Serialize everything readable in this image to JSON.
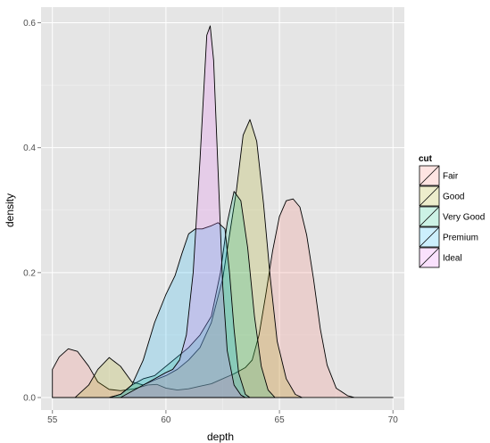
{
  "chart_data": {
    "type": "area",
    "title": "",
    "xlabel": "depth",
    "ylabel": "density",
    "xlim": [
      54.5,
      70.5
    ],
    "ylim": [
      -0.02,
      0.625
    ],
    "x_ticks": [
      55,
      60,
      65,
      70
    ],
    "x_tick_labels": [
      "55",
      "60",
      "65",
      "70"
    ],
    "y_ticks": [
      0.0,
      0.2,
      0.4,
      0.6
    ],
    "y_tick_labels": [
      "0.0",
      "0.2",
      "0.4",
      "0.6"
    ],
    "grid": true,
    "legend": {
      "title": "cut",
      "position": "right"
    },
    "series": [
      {
        "name": "Fair",
        "color": "#F8766D",
        "points": [
          [
            55.0,
            0.045
          ],
          [
            55.3,
            0.065
          ],
          [
            55.7,
            0.078
          ],
          [
            56.1,
            0.074
          ],
          [
            56.6,
            0.05
          ],
          [
            57.0,
            0.025
          ],
          [
            57.5,
            0.013
          ],
          [
            58.0,
            0.011
          ],
          [
            58.6,
            0.014
          ],
          [
            59.2,
            0.02
          ],
          [
            59.6,
            0.021
          ],
          [
            60.0,
            0.015
          ],
          [
            60.5,
            0.012
          ],
          [
            61.0,
            0.014
          ],
          [
            61.5,
            0.018
          ],
          [
            62.0,
            0.022
          ],
          [
            62.5,
            0.03
          ],
          [
            63.0,
            0.038
          ],
          [
            63.5,
            0.048
          ],
          [
            63.8,
            0.06
          ],
          [
            64.1,
            0.1
          ],
          [
            64.4,
            0.165
          ],
          [
            64.7,
            0.235
          ],
          [
            65.0,
            0.29
          ],
          [
            65.3,
            0.315
          ],
          [
            65.6,
            0.318
          ],
          [
            65.9,
            0.305
          ],
          [
            66.2,
            0.26
          ],
          [
            66.5,
            0.19
          ],
          [
            66.8,
            0.11
          ],
          [
            67.1,
            0.052
          ],
          [
            67.5,
            0.015
          ],
          [
            68.0,
            0.003
          ],
          [
            68.3,
            0.0
          ],
          [
            70.0,
            0.0
          ]
        ]
      },
      {
        "name": "Good",
        "color": "#A3A500",
        "points": [
          [
            55.0,
            0.0
          ],
          [
            56.0,
            0.0
          ],
          [
            56.6,
            0.02
          ],
          [
            57.0,
            0.045
          ],
          [
            57.5,
            0.064
          ],
          [
            58.0,
            0.05
          ],
          [
            58.5,
            0.025
          ],
          [
            59.0,
            0.02
          ],
          [
            59.5,
            0.028
          ],
          [
            60.0,
            0.035
          ],
          [
            60.5,
            0.045
          ],
          [
            61.0,
            0.06
          ],
          [
            61.5,
            0.08
          ],
          [
            62.0,
            0.12
          ],
          [
            62.5,
            0.19
          ],
          [
            62.8,
            0.26
          ],
          [
            63.1,
            0.33
          ],
          [
            63.4,
            0.42
          ],
          [
            63.7,
            0.445
          ],
          [
            64.0,
            0.41
          ],
          [
            64.3,
            0.31
          ],
          [
            64.6,
            0.19
          ],
          [
            64.9,
            0.09
          ],
          [
            65.3,
            0.03
          ],
          [
            65.7,
            0.005
          ],
          [
            66.0,
            0.0
          ]
        ]
      },
      {
        "name": "Very Good",
        "color": "#00BF7D",
        "points": [
          [
            57.5,
            0.0
          ],
          [
            58.0,
            0.005
          ],
          [
            58.5,
            0.02
          ],
          [
            59.0,
            0.03
          ],
          [
            59.5,
            0.035
          ],
          [
            60.0,
            0.05
          ],
          [
            60.5,
            0.065
          ],
          [
            61.0,
            0.08
          ],
          [
            61.5,
            0.1
          ],
          [
            62.0,
            0.13
          ],
          [
            62.4,
            0.2
          ],
          [
            62.7,
            0.28
          ],
          [
            63.0,
            0.33
          ],
          [
            63.3,
            0.315
          ],
          [
            63.6,
            0.24
          ],
          [
            63.9,
            0.13
          ],
          [
            64.2,
            0.05
          ],
          [
            64.5,
            0.012
          ],
          [
            64.8,
            0.0
          ]
        ]
      },
      {
        "name": "Premium",
        "color": "#00B0F6",
        "points": [
          [
            57.5,
            0.0
          ],
          [
            58.0,
            0.005
          ],
          [
            58.5,
            0.02
          ],
          [
            59.0,
            0.06
          ],
          [
            59.5,
            0.12
          ],
          [
            60.0,
            0.165
          ],
          [
            60.4,
            0.195
          ],
          [
            60.7,
            0.23
          ],
          [
            61.0,
            0.262
          ],
          [
            61.3,
            0.27
          ],
          [
            61.6,
            0.27
          ],
          [
            62.0,
            0.275
          ],
          [
            62.3,
            0.28
          ],
          [
            62.6,
            0.27
          ],
          [
            62.8,
            0.2
          ],
          [
            63.0,
            0.11
          ],
          [
            63.2,
            0.04
          ],
          [
            63.5,
            0.005
          ],
          [
            63.7,
            0.0
          ]
        ]
      },
      {
        "name": "Ideal",
        "color": "#E76BF3",
        "points": [
          [
            58.0,
            0.0
          ],
          [
            58.5,
            0.01
          ],
          [
            59.0,
            0.02
          ],
          [
            59.5,
            0.03
          ],
          [
            60.0,
            0.04
          ],
          [
            60.3,
            0.045
          ],
          [
            60.6,
            0.06
          ],
          [
            60.9,
            0.1
          ],
          [
            61.2,
            0.2
          ],
          [
            61.5,
            0.38
          ],
          [
            61.8,
            0.58
          ],
          [
            61.95,
            0.595
          ],
          [
            62.1,
            0.54
          ],
          [
            62.3,
            0.36
          ],
          [
            62.5,
            0.18
          ],
          [
            62.7,
            0.075
          ],
          [
            63.0,
            0.02
          ],
          [
            63.3,
            0.004
          ],
          [
            63.5,
            0.0
          ]
        ]
      }
    ]
  }
}
